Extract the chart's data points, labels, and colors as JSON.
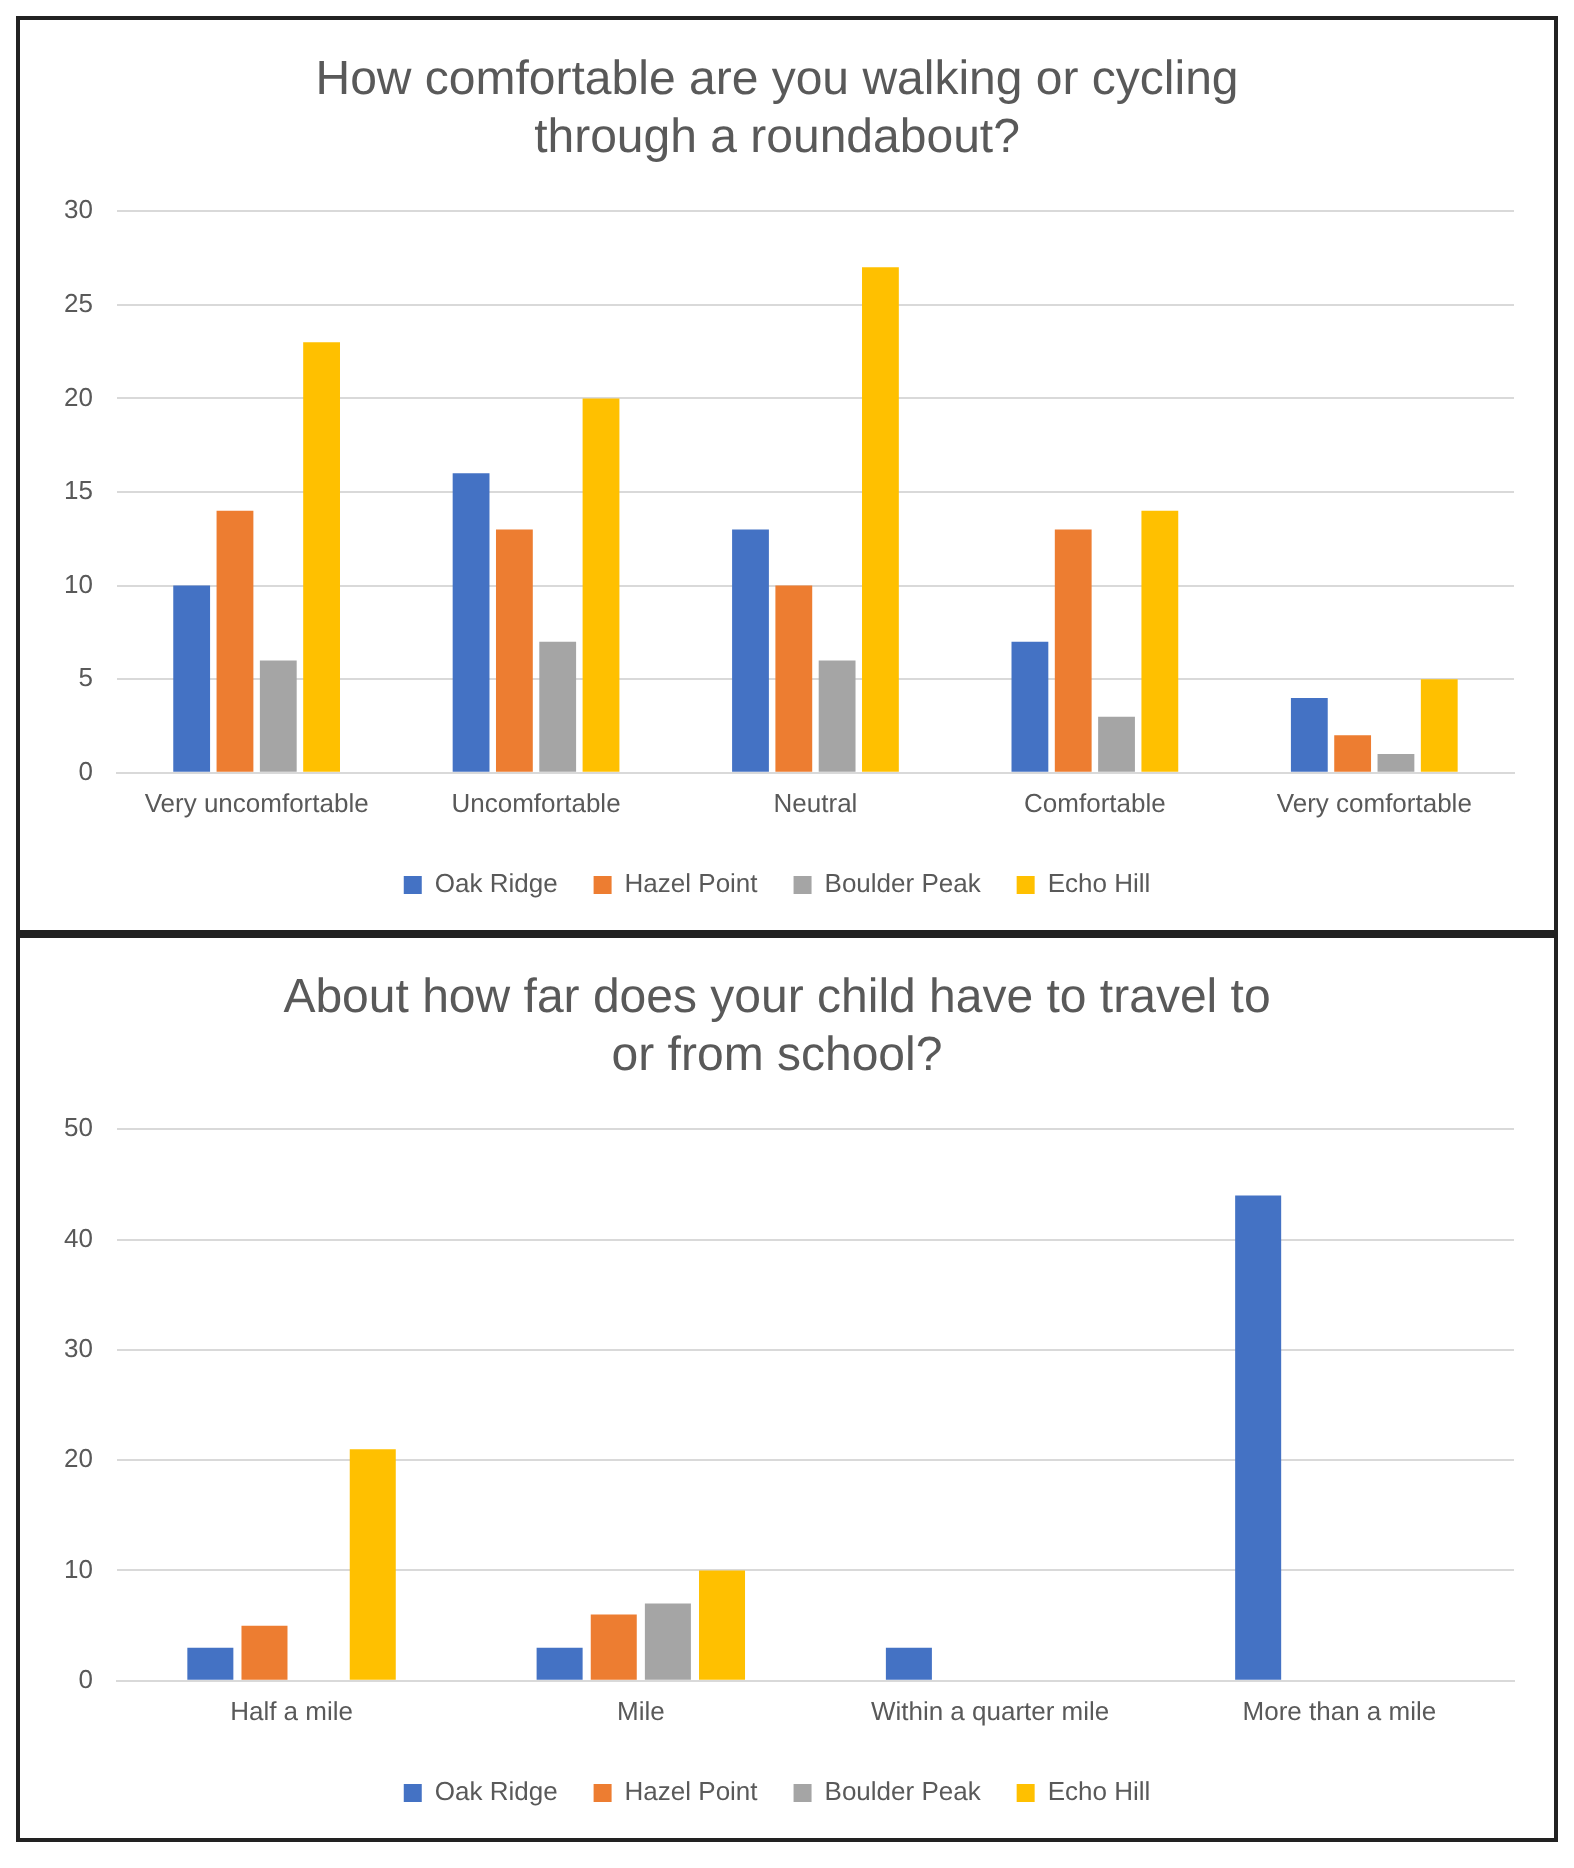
{
  "chart_data": [
    {
      "type": "bar",
      "title": "How comfortable are you walking or cycling through a roundabout?",
      "categories": [
        "Very uncomfortable",
        "Uncomfortable",
        "Neutral",
        "Comfortable",
        "Very comfortable"
      ],
      "series": [
        {
          "name": "Oak Ridge",
          "color": "#4472c4",
          "values": [
            10,
            16,
            13,
            7,
            4
          ]
        },
        {
          "name": "Hazel Point",
          "color": "#ed7d31",
          "values": [
            14,
            13,
            10,
            13,
            2
          ]
        },
        {
          "name": "Boulder Peak",
          "color": "#a5a5a5",
          "values": [
            6,
            7,
            6,
            3,
            1
          ]
        },
        {
          "name": "Echo Hill",
          "color": "#ffc000",
          "values": [
            23,
            20,
            27,
            14,
            5
          ]
        }
      ],
      "ylim": [
        0,
        30
      ],
      "yticks": [
        0,
        5,
        10,
        15,
        20,
        25,
        30
      ],
      "grid": "y",
      "legend": "bottom"
    },
    {
      "type": "bar",
      "title": "About how far does your child have to travel to or from school?",
      "categories": [
        "Half a mile",
        "Mile",
        "Within a quarter mile",
        "More than a mile"
      ],
      "series": [
        {
          "name": "Oak Ridge",
          "color": "#4472c4",
          "values": [
            3,
            3,
            3,
            44
          ]
        },
        {
          "name": "Hazel Point",
          "color": "#ed7d31",
          "values": [
            5,
            6,
            0,
            0
          ]
        },
        {
          "name": "Boulder Peak",
          "color": "#a5a5a5",
          "values": [
            0,
            7,
            0,
            0
          ]
        },
        {
          "name": "Echo Hill",
          "color": "#ffc000",
          "values": [
            21,
            10,
            0,
            0
          ]
        }
      ],
      "ylim": [
        0,
        50
      ],
      "yticks": [
        0,
        10,
        20,
        30,
        40,
        50
      ],
      "grid": "y",
      "legend": "bottom"
    }
  ]
}
